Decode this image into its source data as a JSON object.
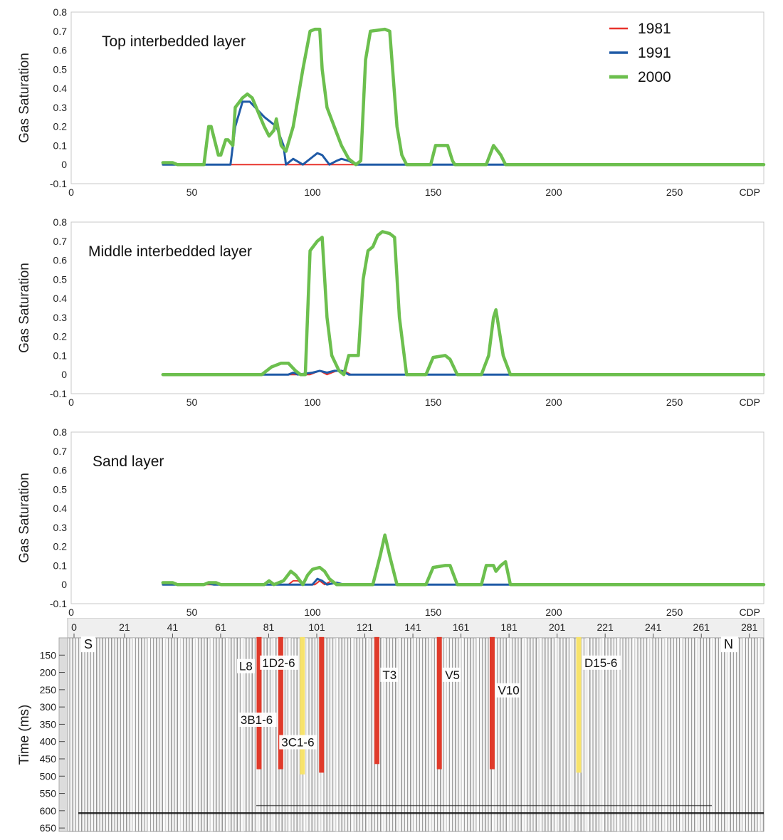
{
  "figure": {
    "colors": {
      "y1981": "#e8332d",
      "y1991": "#1f5aa6",
      "y2000": "#6cbf4e",
      "well_red": "#e03a2a",
      "well_yellow": "#f7e36b"
    }
  },
  "legend": {
    "entries": [
      "1981",
      "1991",
      "2000"
    ]
  },
  "chart_data": [
    {
      "type": "line",
      "title": "Top interbedded layer",
      "xlabel": "CDP",
      "ylabel": "Gas Saturation",
      "xlim": [
        0,
        287
      ],
      "ylim": [
        -0.1,
        0.8
      ],
      "xticks": [
        "0",
        "50",
        "100",
        "150",
        "200",
        "250"
      ],
      "yticks": [
        "0.8",
        "0.7",
        "0.6",
        "0.5",
        "0.4",
        "0.3",
        "0.2",
        "0.1",
        "0",
        "-0.1"
      ],
      "series": [
        {
          "name": "1981",
          "points": [
            [
              38,
              0
            ],
            [
              287,
              0
            ]
          ]
        },
        {
          "name": "1991",
          "points": [
            [
              38,
              0
            ],
            [
              66,
              0
            ],
            [
              68,
              0.2
            ],
            [
              71,
              0.33
            ],
            [
              74,
              0.33
            ],
            [
              80,
              0.25
            ],
            [
              85,
              0.2
            ],
            [
              88,
              0.1
            ],
            [
              89,
              0
            ],
            [
              92,
              0.03
            ],
            [
              96,
              0
            ],
            [
              100,
              0.04
            ],
            [
              102,
              0.06
            ],
            [
              104,
              0.05
            ],
            [
              107,
              0
            ],
            [
              110,
              0.02
            ],
            [
              112,
              0.03
            ],
            [
              115,
              0.02
            ],
            [
              118,
              0
            ],
            [
              287,
              0
            ]
          ]
        },
        {
          "name": "2000",
          "points": [
            [
              38,
              0.01
            ],
            [
              42,
              0.01
            ],
            [
              44,
              0
            ],
            [
              55,
              0
            ],
            [
              57,
              0.2
            ],
            [
              58,
              0.2
            ],
            [
              61,
              0.05
            ],
            [
              62,
              0.05
            ],
            [
              64,
              0.13
            ],
            [
              65,
              0.13
            ],
            [
              67,
              0.1
            ],
            [
              68,
              0.3
            ],
            [
              71,
              0.35
            ],
            [
              73,
              0.37
            ],
            [
              75,
              0.35
            ],
            [
              80,
              0.2
            ],
            [
              82,
              0.15
            ],
            [
              84,
              0.18
            ],
            [
              85,
              0.24
            ],
            [
              87,
              0.1
            ],
            [
              89,
              0.07
            ],
            [
              92,
              0.2
            ],
            [
              96,
              0.5
            ],
            [
              99,
              0.7
            ],
            [
              101,
              0.71
            ],
            [
              103,
              0.71
            ],
            [
              104,
              0.5
            ],
            [
              106,
              0.3
            ],
            [
              109,
              0.2
            ],
            [
              112,
              0.1
            ],
            [
              115,
              0.03
            ],
            [
              118,
              0
            ],
            [
              120,
              0.02
            ],
            [
              122,
              0.55
            ],
            [
              124,
              0.7
            ],
            [
              130,
              0.71
            ],
            [
              132,
              0.7
            ],
            [
              135,
              0.2
            ],
            [
              137,
              0.05
            ],
            [
              139,
              0
            ],
            [
              149,
              0
            ],
            [
              151,
              0.1
            ],
            [
              156,
              0.1
            ],
            [
              158,
              0.02
            ],
            [
              159,
              0
            ],
            [
              172,
              0
            ],
            [
              175,
              0.1
            ],
            [
              178,
              0.05
            ],
            [
              180,
              0
            ],
            [
              287,
              0
            ]
          ]
        }
      ]
    },
    {
      "type": "line",
      "title": "Middle interbedded layer",
      "xlabel": "CDP",
      "ylabel": "Gas Saturation",
      "xlim": [
        0,
        287
      ],
      "ylim": [
        -0.1,
        0.8
      ],
      "xticks": [
        "0",
        "50",
        "100",
        "150",
        "200",
        "250"
      ],
      "yticks": [
        "0.8",
        "0.7",
        "0.6",
        "0.5",
        "0.4",
        "0.3",
        "0.2",
        "0.1",
        "0",
        "-0.1"
      ],
      "series": [
        {
          "name": "1981",
          "points": [
            [
              38,
              0
            ],
            [
              99,
              0
            ],
            [
              101,
              0.01
            ],
            [
              103,
              0.02
            ],
            [
              106,
              0
            ],
            [
              110,
              0.02
            ],
            [
              113,
              0.02
            ],
            [
              116,
              0
            ],
            [
              287,
              0
            ]
          ]
        },
        {
          "name": "1991",
          "points": [
            [
              38,
              0
            ],
            [
              90,
              0
            ],
            [
              92,
              0.01
            ],
            [
              94,
              0
            ],
            [
              100,
              0.01
            ],
            [
              103,
              0.02
            ],
            [
              106,
              0.01
            ],
            [
              109,
              0.02
            ],
            [
              112,
              0.02
            ],
            [
              115,
              0
            ],
            [
              287,
              0
            ]
          ]
        },
        {
          "name": "2000",
          "points": [
            [
              38,
              0
            ],
            [
              79,
              0
            ],
            [
              83,
              0.04
            ],
            [
              87,
              0.06
            ],
            [
              90,
              0.06
            ],
            [
              93,
              0.02
            ],
            [
              95,
              0
            ],
            [
              97,
              0
            ],
            [
              99,
              0.65
            ],
            [
              102,
              0.7
            ],
            [
              104,
              0.72
            ],
            [
              106,
              0.3
            ],
            [
              108,
              0.1
            ],
            [
              111,
              0.02
            ],
            [
              113,
              0
            ],
            [
              115,
              0.1
            ],
            [
              117,
              0.1
            ],
            [
              119,
              0.1
            ],
            [
              121,
              0.5
            ],
            [
              123,
              0.65
            ],
            [
              125,
              0.67
            ],
            [
              127,
              0.73
            ],
            [
              129,
              0.75
            ],
            [
              132,
              0.74
            ],
            [
              134,
              0.72
            ],
            [
              136,
              0.3
            ],
            [
              139,
              0
            ],
            [
              147,
              0
            ],
            [
              150,
              0.09
            ],
            [
              155,
              0.1
            ],
            [
              157,
              0.08
            ],
            [
              160,
              0
            ],
            [
              170,
              0
            ],
            [
              173,
              0.1
            ],
            [
              175,
              0.3
            ],
            [
              176,
              0.34
            ],
            [
              179,
              0.1
            ],
            [
              182,
              0
            ],
            [
              287,
              0
            ]
          ]
        }
      ]
    },
    {
      "type": "line",
      "title": "Sand layer",
      "xlabel": "CDP",
      "ylabel": "Gas Saturation",
      "xlim": [
        0,
        287
      ],
      "ylim": [
        -0.1,
        0.8
      ],
      "xticks": [
        "0",
        "50",
        "100",
        "150",
        "200",
        "250"
      ],
      "yticks": [
        "0.8",
        "0.7",
        "0.6",
        "0.5",
        "0.4",
        "0.3",
        "0.2",
        "0.1",
        "0",
        "-0.1"
      ],
      "series": [
        {
          "name": "1981",
          "points": [
            [
              38,
              0
            ],
            [
              90,
              0
            ],
            [
              92,
              0.02
            ],
            [
              94,
              0.02
            ],
            [
              96,
              0
            ],
            [
              101,
              0
            ],
            [
              103,
              0.02
            ],
            [
              105,
              0
            ],
            [
              108,
              0.02
            ],
            [
              110,
              0
            ],
            [
              287,
              0
            ]
          ]
        },
        {
          "name": "1991",
          "points": [
            [
              38,
              0
            ],
            [
              55,
              0
            ],
            [
              57,
              0.005
            ],
            [
              59,
              0
            ],
            [
              100,
              0
            ],
            [
              102,
              0.03
            ],
            [
              104,
              0.02
            ],
            [
              106,
              0
            ],
            [
              110,
              0.01
            ],
            [
              113,
              0
            ],
            [
              287,
              0
            ]
          ]
        },
        {
          "name": "2000",
          "points": [
            [
              38,
              0.01
            ],
            [
              42,
              0.01
            ],
            [
              44,
              0
            ],
            [
              55,
              0
            ],
            [
              57,
              0.01
            ],
            [
              60,
              0.01
            ],
            [
              62,
              0
            ],
            [
              80,
              0
            ],
            [
              82,
              0.02
            ],
            [
              84,
              0
            ],
            [
              88,
              0.02
            ],
            [
              91,
              0.07
            ],
            [
              93,
              0.05
            ],
            [
              96,
              0
            ],
            [
              98,
              0.05
            ],
            [
              100,
              0.08
            ],
            [
              103,
              0.09
            ],
            [
              105,
              0.07
            ],
            [
              107,
              0.03
            ],
            [
              110,
              0
            ],
            [
              125,
              0
            ],
            [
              128,
              0.15
            ],
            [
              130,
              0.26
            ],
            [
              132,
              0.15
            ],
            [
              135,
              0
            ],
            [
              147,
              0
            ],
            [
              150,
              0.09
            ],
            [
              155,
              0.1
            ],
            [
              157,
              0.1
            ],
            [
              160,
              0
            ],
            [
              170,
              0
            ],
            [
              172,
              0.1
            ],
            [
              175,
              0.1
            ],
            [
              176,
              0.07
            ],
            [
              178,
              0.1
            ],
            [
              180,
              0.12
            ],
            [
              182,
              0
            ],
            [
              287,
              0
            ]
          ]
        }
      ]
    }
  ],
  "seismic": {
    "ylabel": "Time (ms)",
    "cdp_ticks": [
      "0",
      "21",
      "41",
      "61",
      "81",
      "101",
      "121",
      "141",
      "161",
      "181",
      "201",
      "221",
      "241",
      "261",
      "281"
    ],
    "time_ticks": [
      "150",
      "200",
      "250",
      "300",
      "350",
      "400",
      "450",
      "500",
      "550",
      "600",
      "650"
    ],
    "time_range": [
      100,
      660
    ],
    "direction_left": "S",
    "direction_right": "N",
    "wells": [
      {
        "name": "L8",
        "cdp": 77,
        "top": 110,
        "bottom": 480,
        "color": "red",
        "label_time": 190,
        "label_side": "left"
      },
      {
        "name": "3B1-6",
        "cdp": 86,
        "top": 110,
        "bottom": 480,
        "color": "red",
        "label_time": 345,
        "label_side": "left"
      },
      {
        "name": "1D2-6",
        "cdp": 95,
        "top": 110,
        "bottom": 495,
        "color": "yellow",
        "label_time": 180,
        "label_side": "left"
      },
      {
        "name": "3C1-6",
        "cdp": 103,
        "top": 110,
        "bottom": 490,
        "color": "red",
        "label_time": 410,
        "label_side": "left"
      },
      {
        "name": "T3",
        "cdp": 126,
        "top": 110,
        "bottom": 465,
        "color": "red",
        "label_time": 215,
        "label_side": "right"
      },
      {
        "name": "V5",
        "cdp": 152,
        "top": 110,
        "bottom": 480,
        "color": "red",
        "label_time": 215,
        "label_side": "right"
      },
      {
        "name": "V10",
        "cdp": 174,
        "top": 110,
        "bottom": 480,
        "color": "red",
        "label_time": 260,
        "label_side": "right"
      },
      {
        "name": "D15-6",
        "cdp": 210,
        "top": 110,
        "bottom": 490,
        "color": "yellow",
        "label_time": 180,
        "label_side": "right"
      }
    ]
  }
}
